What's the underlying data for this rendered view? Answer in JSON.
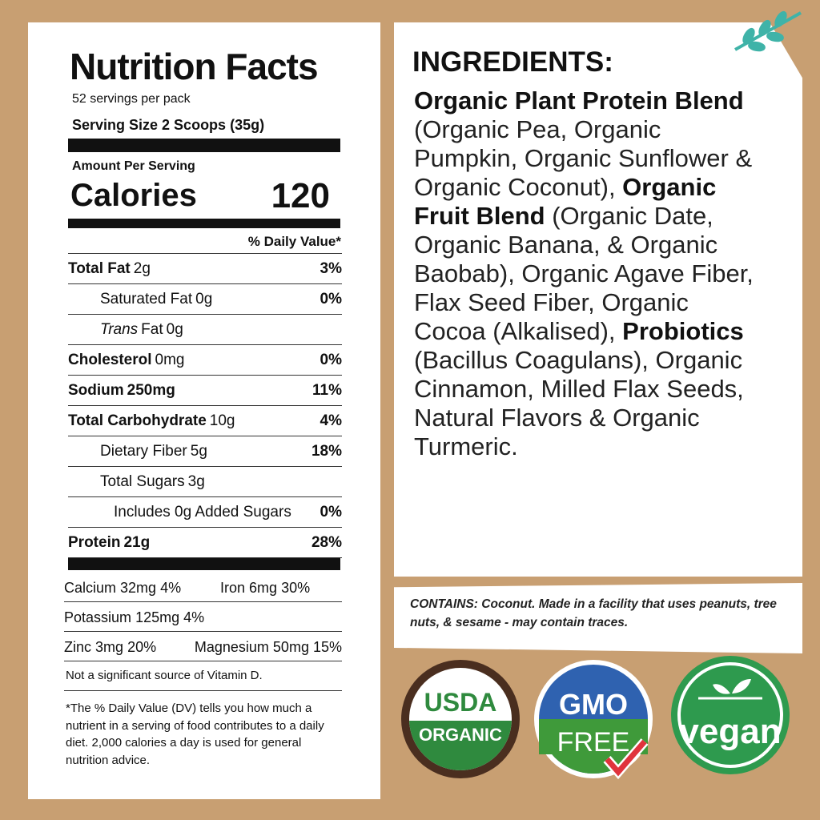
{
  "nutrition": {
    "title": "Nutrition Facts",
    "servings": "52 servings per pack",
    "serving_size": "Serving Size 2 Scoops (35g)",
    "amount_per_serving": "Amount Per Serving",
    "calories": {
      "label": "Calories",
      "value": "120"
    },
    "daily_value_header": "% Daily Value*",
    "rows": [
      {
        "label": "Total Fat",
        "amount": "2g",
        "dv": "3%"
      },
      {
        "label": "Saturated Fat",
        "amount": "0g",
        "dv": "0%"
      },
      {
        "label_italic": "Trans",
        "label": "Fat",
        "amount": "0g"
      },
      {
        "label": "Cholesterol",
        "amount": "0mg",
        "dv": "0%"
      },
      {
        "label": "Sodium",
        "amount": "250mg",
        "dv": "11%"
      },
      {
        "label": "Total Carbohydrate",
        "amount": "10g",
        "dv": "4%"
      },
      {
        "label": "Dietary Fiber",
        "amount": "5g",
        "dv": "18%"
      },
      {
        "label": "Total Sugars",
        "amount": "3g"
      },
      {
        "label": "Includes 0g Added Sugars",
        "dv": "0%"
      },
      {
        "label": "Protein",
        "amount": "21g",
        "dv": "28%"
      }
    ],
    "minerals": [
      [
        {
          "name": "Calcium",
          "amount": "32mg",
          "dv": "4%"
        },
        {
          "name": "Iron",
          "amount": "6mg",
          "dv": "30%"
        }
      ],
      [
        {
          "name": "Potassium",
          "amount": "125mg",
          "dv": "4%"
        }
      ],
      [
        {
          "name": "Zinc",
          "amount": "3mg",
          "dv": "20%"
        },
        {
          "name": "Magnesium",
          "amount": "50mg",
          "dv": "15%"
        }
      ]
    ],
    "vitamin_note": "Not a significant source of Vitamin D.",
    "footnote": "*The % Daily Value (DV) tells you how much a nutrient in a serving of food contributes to a daily diet. 2,000 calories a day is used for general nutrition advice."
  },
  "ingredients": {
    "title": "INGREDIENTS:",
    "segments": [
      {
        "bold": "Organic Plant Protein Blend"
      },
      {
        "text": " (Organic Pea, Organic Pumpkin, Organic Sunflower & Organic Coconut), "
      },
      {
        "bold": "Organic Fruit Blend"
      },
      {
        "text": " (Organic Date, Organic Banana, & Organic Baobab), Organic Agave Fiber, Flax Seed Fiber, Organic Cocoa (Alkalised), "
      },
      {
        "bold": "Probiotics"
      },
      {
        "text": " (Bacillus Coagulans), Organic Cinnamon, Milled Flax Seeds, Natural Flavors & Organic Turmeric."
      }
    ]
  },
  "contains": {
    "label": "CONTAINS:",
    "text": "Coconut. Made in a facility that uses peanuts, tree nuts, & sesame - may contain traces."
  },
  "badges": [
    {
      "top": "USDA",
      "bottom": "ORGANIC"
    },
    {
      "top": "GMO",
      "bottom": "FREE"
    },
    {
      "text": "vegan"
    }
  ]
}
